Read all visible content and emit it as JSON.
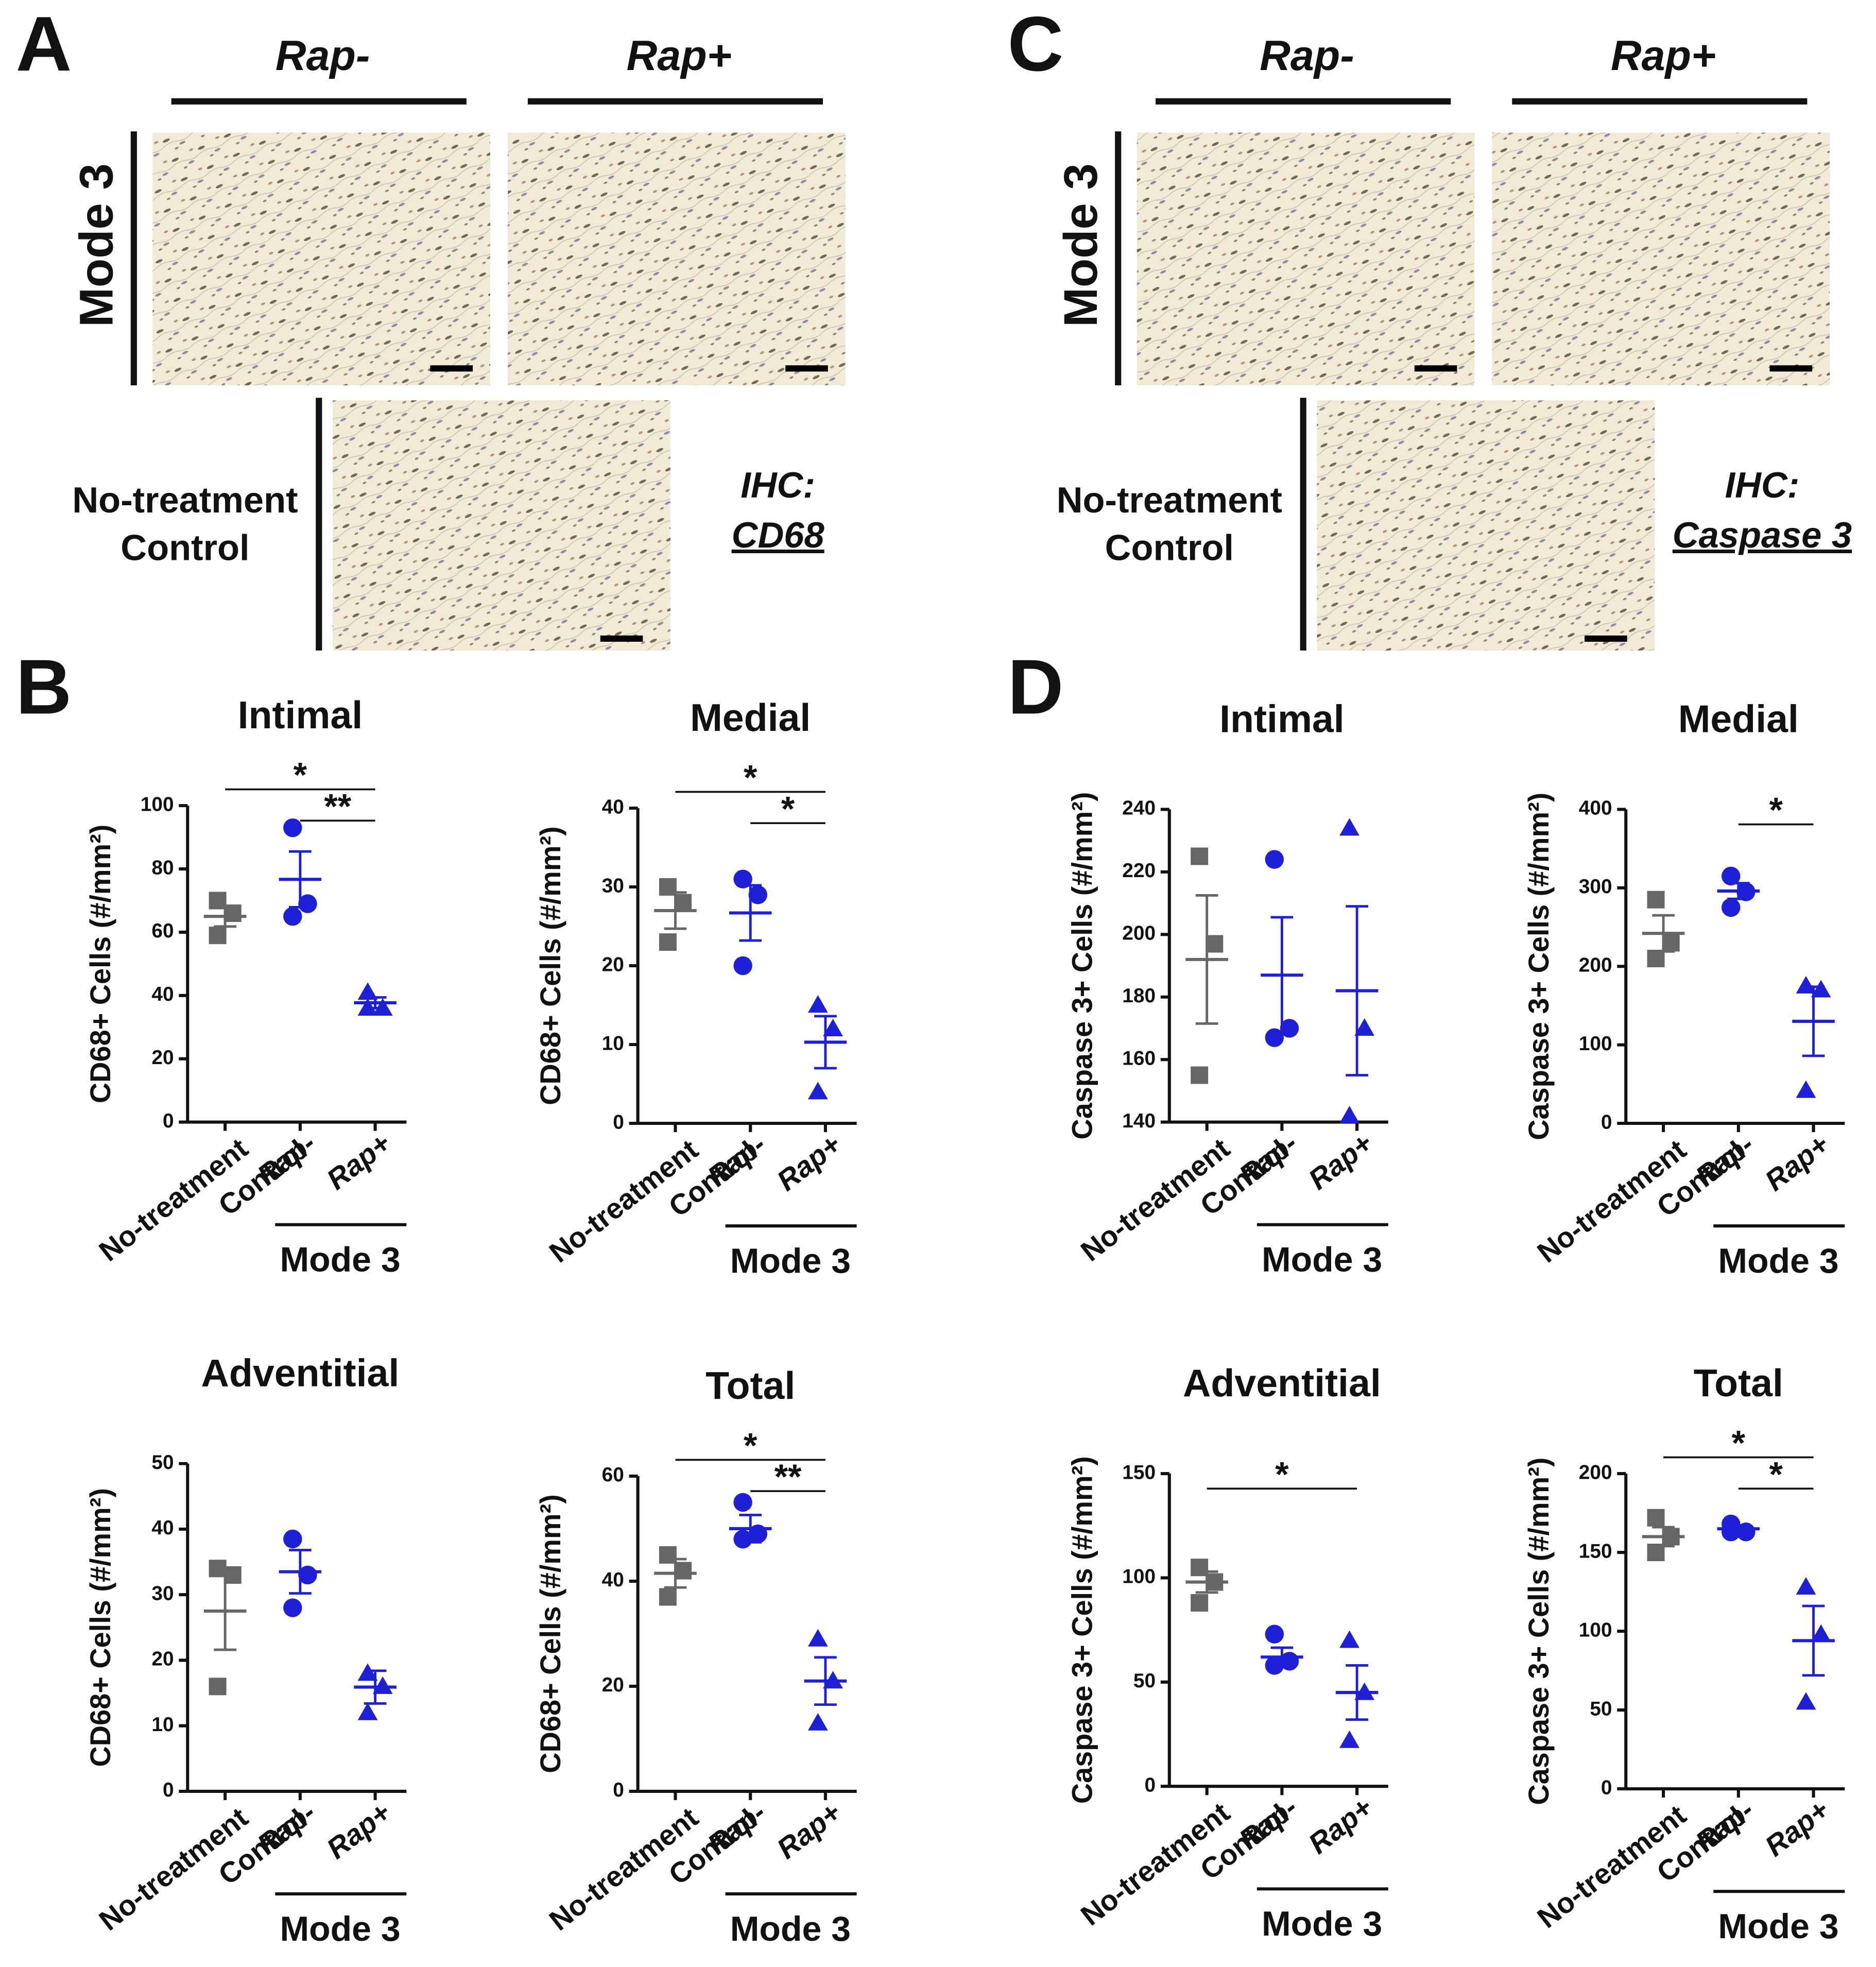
{
  "figure": {
    "panel_letters": [
      "A",
      "B",
      "C",
      "D"
    ],
    "micrographs": [
      {
        "columns": [
          "Rap-",
          "Rap+"
        ],
        "row_label": "Mode 3",
        "control_label": [
          "No-treatment",
          "Control"
        ],
        "stain": [
          "IHC:",
          "CD68"
        ]
      },
      {
        "columns": [
          "Rap-",
          "Rap+"
        ],
        "row_label": "Mode 3",
        "control_label": [
          "No-treatment",
          "Control"
        ],
        "stain": [
          "IHC:",
          "Caspase 3"
        ]
      }
    ]
  },
  "chart_data": [
    {
      "type": "scatter",
      "title": "Intimal",
      "ylabel": "CD68+ Cells (#/mm²)",
      "categories": [
        "No-treatment Control",
        "Rap-",
        "Rap+"
      ],
      "group_label": "Mode 3",
      "points": [
        [
          70,
          66,
          59
        ],
        [
          93,
          69,
          65
        ],
        [
          41,
          36,
          36
        ]
      ],
      "means": [
        65,
        76.7,
        37.7
      ],
      "sem": [
        3.2,
        8.8,
        1.7
      ],
      "colors": [
        "#666666",
        "#1f1fd6",
        "#1f1fd6"
      ],
      "markers": [
        "square",
        "circle",
        "triangle"
      ],
      "ylim": [
        0,
        100
      ],
      "yticks": [
        0,
        20,
        40,
        60,
        80,
        100
      ],
      "significance": [
        {
          "from": 0,
          "to": 2,
          "label": "*"
        },
        {
          "from": 1,
          "to": 2,
          "label": "**"
        }
      ]
    },
    {
      "type": "scatter",
      "title": "Medial",
      "ylabel": "CD68+ Cells (#/mm²)",
      "categories": [
        "No-treatment Control",
        "Rap-",
        "Rap+"
      ],
      "group_label": "Mode 3",
      "points": [
        [
          30,
          28,
          23
        ],
        [
          31,
          29,
          20
        ],
        [
          15,
          12,
          4
        ]
      ],
      "means": [
        27,
        26.7,
        10.3
      ],
      "sem": [
        2.3,
        3.5,
        3.3
      ],
      "colors": [
        "#666666",
        "#1f1fd6",
        "#1f1fd6"
      ],
      "markers": [
        "square",
        "circle",
        "triangle"
      ],
      "ylim": [
        0,
        40
      ],
      "yticks": [
        0,
        10,
        20,
        30,
        40
      ],
      "significance": [
        {
          "from": 0,
          "to": 2,
          "label": "*"
        },
        {
          "from": 1,
          "to": 2,
          "label": "*"
        }
      ]
    },
    {
      "type": "scatter",
      "title": "Adventitial",
      "ylabel": "CD68+ Cells (#/mm²)",
      "categories": [
        "No-treatment Control",
        "Rap-",
        "Rap+"
      ],
      "group_label": "Mode 3",
      "points": [
        [
          34,
          33,
          16
        ],
        [
          38.5,
          33,
          28
        ],
        [
          18,
          16,
          12
        ]
      ],
      "means": [
        27.5,
        33.5,
        15.9
      ],
      "sem": [
        5.9,
        3.3,
        2.5
      ],
      "colors": [
        "#666666",
        "#1f1fd6",
        "#1f1fd6"
      ],
      "markers": [
        "square",
        "circle",
        "triangle"
      ],
      "ylim": [
        0,
        50
      ],
      "yticks": [
        0,
        10,
        20,
        30,
        40,
        50
      ],
      "significance": []
    },
    {
      "type": "scatter",
      "title": "Total",
      "ylabel": "CD68+ Cells (#/mm²)",
      "categories": [
        "No-treatment Control",
        "Rap-",
        "Rap+"
      ],
      "group_label": "Mode 3",
      "points": [
        [
          45,
          42,
          37
        ],
        [
          55,
          49,
          48
        ],
        [
          29,
          21,
          13
        ]
      ],
      "means": [
        41.5,
        50,
        21
      ],
      "sem": [
        2.7,
        2.6,
        4.5
      ],
      "colors": [
        "#666666",
        "#1f1fd6",
        "#1f1fd6"
      ],
      "markers": [
        "square",
        "circle",
        "triangle"
      ],
      "ylim": [
        0,
        60
      ],
      "yticks": [
        0,
        20,
        40,
        60
      ],
      "significance": [
        {
          "from": 0,
          "to": 2,
          "label": "*"
        },
        {
          "from": 1,
          "to": 2,
          "label": "**"
        }
      ]
    },
    {
      "type": "scatter",
      "title": "Intimal",
      "ylabel": "Caspase 3+ Cells (#/mm²)",
      "categories": [
        "No-treatment Control",
        "Rap-",
        "Rap+"
      ],
      "group_label": "Mode 3",
      "points": [
        [
          225,
          197,
          155
        ],
        [
          224,
          170,
          167
        ],
        [
          234,
          170,
          142
        ]
      ],
      "means": [
        192,
        187,
        182
      ],
      "sem": [
        20.5,
        18.5,
        27
      ],
      "colors": [
        "#666666",
        "#1f1fd6",
        "#1f1fd6"
      ],
      "markers": [
        "square",
        "circle",
        "triangle"
      ],
      "ylim": [
        140,
        240
      ],
      "yticks": [
        140,
        160,
        180,
        200,
        220,
        240
      ],
      "significance": []
    },
    {
      "type": "scatter",
      "title": "Medial",
      "ylabel": "Caspase 3+ Cells (#/mm²)",
      "categories": [
        "No-treatment Control",
        "Rap-",
        "Rap+"
      ],
      "group_label": "Mode 3",
      "points": [
        [
          285,
          230,
          210
        ],
        [
          315,
          295,
          275
        ],
        [
          175,
          170,
          42
        ]
      ],
      "means": [
        242,
        296,
        130
      ],
      "sem": [
        23,
        10,
        44
      ],
      "colors": [
        "#666666",
        "#1f1fd6",
        "#1f1fd6"
      ],
      "markers": [
        "square",
        "circle",
        "triangle"
      ],
      "ylim": [
        0,
        400
      ],
      "yticks": [
        0,
        100,
        200,
        300,
        400
      ],
      "significance": [
        {
          "from": 1,
          "to": 2,
          "label": "*"
        }
      ]
    },
    {
      "type": "scatter",
      "title": "Adventitial",
      "ylabel": "Caspase 3+ Cells (#/mm²)",
      "categories": [
        "No-treatment Control",
        "Rap-",
        "Rap+"
      ],
      "group_label": "Mode 3",
      "points": [
        [
          105,
          98,
          88
        ],
        [
          73,
          60,
          58
        ],
        [
          70,
          45,
          22
        ]
      ],
      "means": [
        98,
        62,
        45
      ],
      "sem": [
        5,
        4.5,
        13
      ],
      "colors": [
        "#666666",
        "#1f1fd6",
        "#1f1fd6"
      ],
      "markers": [
        "square",
        "circle",
        "triangle"
      ],
      "ylim": [
        0,
        150
      ],
      "yticks": [
        0,
        50,
        100,
        150
      ],
      "significance": [
        {
          "from": 0,
          "to": 2,
          "label": "*"
        }
      ]
    },
    {
      "type": "scatter",
      "title": "Total",
      "ylabel": "Caspase 3+ Cells (#/mm²)",
      "categories": [
        "No-treatment Control",
        "Rap-",
        "Rap+"
      ],
      "group_label": "Mode 3",
      "points": [
        [
          172,
          160,
          150
        ],
        [
          168,
          163,
          163
        ],
        [
          128,
          98,
          55
        ]
      ],
      "means": [
        160,
        165,
        94
      ],
      "sem": [
        6,
        2,
        22
      ],
      "colors": [
        "#666666",
        "#1f1fd6",
        "#1f1fd6"
      ],
      "markers": [
        "square",
        "circle",
        "triangle"
      ],
      "ylim": [
        0,
        200
      ],
      "yticks": [
        0,
        50,
        100,
        150,
        200
      ],
      "significance": [
        {
          "from": 0,
          "to": 2,
          "label": "*"
        },
        {
          "from": 1,
          "to": 2,
          "label": "*"
        }
      ]
    }
  ]
}
